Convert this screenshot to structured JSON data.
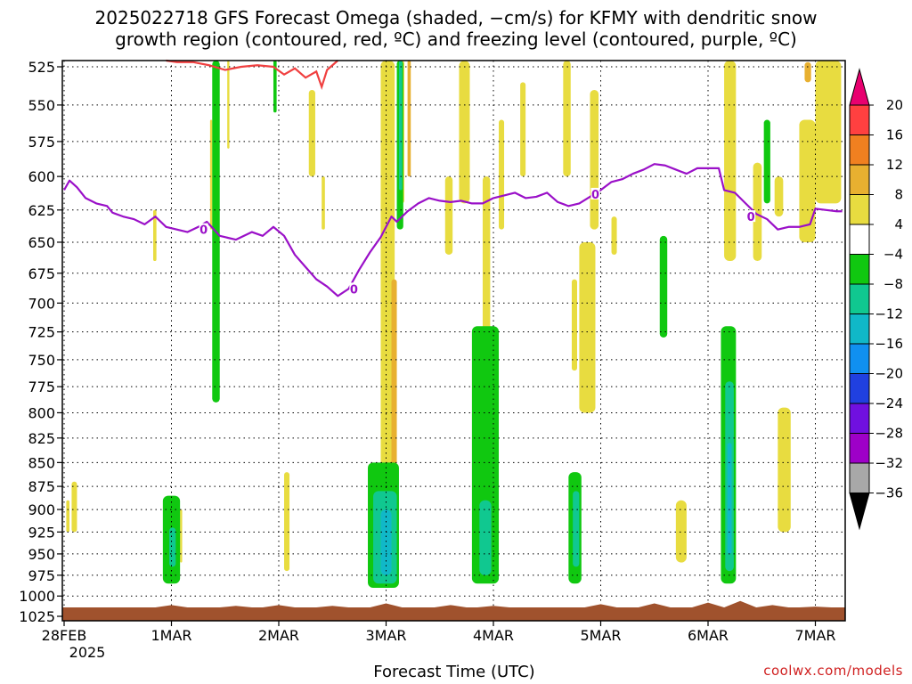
{
  "title_line1": "2025022718 GFS Forecast Omega (shaded, −cm/s) for KFMY with dendritic snow",
  "title_line2": "growth region (contoured, red, ºC) and freezing level (contoured, purple, ºC)",
  "credit": "coolwx.com/models",
  "chart_data": {
    "type": "heatmap",
    "xlabel": "Forecast Time (UTC)",
    "x_ticks": [
      {
        "label": "28FEB",
        "sub": "2025",
        "day": 0
      },
      {
        "label": "1MAR",
        "day": 1
      },
      {
        "label": "2MAR",
        "day": 2
      },
      {
        "label": "3MAR",
        "day": 3
      },
      {
        "label": "4MAR",
        "day": 4
      },
      {
        "label": "5MAR",
        "day": 5
      },
      {
        "label": "6MAR",
        "day": 6
      },
      {
        "label": "7MAR",
        "day": 7
      }
    ],
    "x_range_days": [
      -0.02,
      7.25
    ],
    "y_ticks": [
      525,
      550,
      575,
      600,
      625,
      650,
      675,
      700,
      725,
      750,
      775,
      800,
      825,
      850,
      875,
      900,
      925,
      950,
      975,
      1000,
      1025
    ],
    "y_scale": "log-pressure",
    "y_range_hpa": [
      520,
      1028
    ],
    "grid": true,
    "colorbar": {
      "labels": [
        "20",
        "16",
        "12",
        "8",
        "4",
        "−4",
        "−8",
        "−12",
        "−16",
        "−20",
        "−24",
        "−28",
        "−32",
        "−36"
      ],
      "colors": [
        "#e8006f",
        "#ff4040",
        "#f08020",
        "#e8b030",
        "#e8dc40",
        "#ffffff",
        "#10c810",
        "#10c890",
        "#10b8c8",
        "#1090f0",
        "#2040e0",
        "#7010e0",
        "#9e00c8",
        "#a8a8a8",
        "#000000"
      ]
    },
    "freezing_level": {
      "color": "#9a10c8",
      "label": "0",
      "points": [
        [
          0.0,
          610
        ],
        [
          0.05,
          603
        ],
        [
          0.12,
          608
        ],
        [
          0.2,
          616
        ],
        [
          0.3,
          620
        ],
        [
          0.4,
          622
        ],
        [
          0.45,
          627
        ],
        [
          0.55,
          630
        ],
        [
          0.65,
          632
        ],
        [
          0.75,
          636
        ],
        [
          0.85,
          630
        ],
        [
          0.95,
          638
        ],
        [
          1.05,
          640
        ],
        [
          1.15,
          642
        ],
        [
          1.25,
          638
        ],
        [
          1.33,
          634
        ],
        [
          1.45,
          645
        ],
        [
          1.6,
          648
        ],
        [
          1.75,
          642
        ],
        [
          1.85,
          645
        ],
        [
          1.95,
          638
        ],
        [
          2.05,
          645
        ],
        [
          2.15,
          660
        ],
        [
          2.25,
          670
        ],
        [
          2.35,
          680
        ],
        [
          2.45,
          686
        ],
        [
          2.55,
          694
        ],
        [
          2.65,
          688
        ],
        [
          2.75,
          672
        ],
        [
          2.85,
          658
        ],
        [
          2.95,
          646
        ],
        [
          3.05,
          630
        ],
        [
          3.1,
          634
        ],
        [
          3.2,
          626
        ],
        [
          3.3,
          620
        ],
        [
          3.4,
          616
        ],
        [
          3.5,
          618
        ],
        [
          3.6,
          619
        ],
        [
          3.7,
          618
        ],
        [
          3.8,
          620
        ],
        [
          3.9,
          620
        ],
        [
          4.0,
          616
        ],
        [
          4.1,
          614
        ],
        [
          4.2,
          612
        ],
        [
          4.3,
          616
        ],
        [
          4.4,
          615
        ],
        [
          4.5,
          612
        ],
        [
          4.6,
          619
        ],
        [
          4.7,
          622
        ],
        [
          4.8,
          620
        ],
        [
          4.9,
          615
        ],
        [
          5.0,
          610
        ],
        [
          5.1,
          604
        ],
        [
          5.2,
          602
        ],
        [
          5.3,
          598
        ],
        [
          5.4,
          595
        ],
        [
          5.5,
          591
        ],
        [
          5.6,
          592
        ],
        [
          5.7,
          595
        ],
        [
          5.8,
          598
        ],
        [
          5.9,
          594
        ],
        [
          6.0,
          594
        ],
        [
          6.1,
          594
        ],
        [
          6.15,
          610
        ],
        [
          6.25,
          612
        ],
        [
          6.35,
          620
        ],
        [
          6.45,
          628
        ],
        [
          6.55,
          632
        ],
        [
          6.65,
          640
        ],
        [
          6.75,
          638
        ],
        [
          6.85,
          638
        ],
        [
          6.95,
          636
        ],
        [
          7.0,
          624
        ],
        [
          7.1,
          625
        ],
        [
          7.2,
          626
        ],
        [
          7.25,
          626
        ]
      ]
    },
    "dendritic_zone": {
      "color": "#f04040",
      "points": [
        [
          0.95,
          521
        ],
        [
          1.05,
          522
        ],
        [
          1.2,
          522
        ],
        [
          1.35,
          524
        ],
        [
          1.5,
          527
        ],
        [
          1.65,
          525
        ],
        [
          1.8,
          524
        ],
        [
          1.95,
          525
        ],
        [
          2.05,
          530
        ],
        [
          2.15,
          526
        ],
        [
          2.25,
          532
        ],
        [
          2.35,
          528
        ],
        [
          2.4,
          538
        ],
        [
          2.45,
          527
        ],
        [
          2.55,
          521
        ]
      ]
    },
    "terrain": {
      "color": "#a0522d",
      "top_hpa": 1014,
      "bumps": [
        [
          1.0,
          1011
        ],
        [
          1.6,
          1012
        ],
        [
          2.0,
          1011
        ],
        [
          2.5,
          1012
        ],
        [
          3.0,
          1009
        ],
        [
          3.6,
          1011
        ],
        [
          4.0,
          1012
        ],
        [
          5.0,
          1010
        ],
        [
          5.5,
          1009
        ],
        [
          6.0,
          1008
        ],
        [
          6.3,
          1006
        ],
        [
          6.6,
          1011
        ],
        [
          7.0,
          1013
        ]
      ]
    },
    "omega_regions": [
      {
        "name": "yellow-1",
        "color": "#e8dc40",
        "x0": 0.02,
        "x1": 0.05,
        "p0": 890,
        "p1": 925
      },
      {
        "name": "yellow-2",
        "color": "#e8dc40",
        "x0": 0.07,
        "x1": 0.12,
        "p0": 870,
        "p1": 925
      },
      {
        "name": "yellow-3",
        "color": "#e8dc40",
        "x0": 0.83,
        "x1": 0.86,
        "p0": 625,
        "p1": 665
      },
      {
        "name": "yellow-4",
        "color": "#e8dc40",
        "x0": 1.08,
        "x1": 1.1,
        "p0": 900,
        "p1": 960
      },
      {
        "name": "yellow-5",
        "color": "#e8dc40",
        "x0": 1.36,
        "x1": 1.38,
        "p0": 560,
        "p1": 640
      },
      {
        "name": "yellow-6",
        "color": "#e8dc40",
        "x0": 1.52,
        "x1": 1.54,
        "p0": 520,
        "p1": 580
      },
      {
        "name": "yellow-7",
        "color": "#e8dc40",
        "x0": 2.05,
        "x1": 2.1,
        "p0": 860,
        "p1": 970
      },
      {
        "name": "yellow-8",
        "color": "#e8dc40",
        "x0": 2.28,
        "x1": 2.34,
        "p0": 540,
        "p1": 600
      },
      {
        "name": "yellow-9",
        "color": "#e8dc40",
        "x0": 2.4,
        "x1": 2.43,
        "p0": 600,
        "p1": 640
      },
      {
        "name": "yellow-10",
        "color": "#e8dc40",
        "x0": 2.95,
        "x1": 3.08,
        "p0": 520,
        "p1": 900
      },
      {
        "name": "yellow-11",
        "color": "#e8dc40",
        "x0": 3.12,
        "x1": 3.17,
        "p0": 520,
        "p1": 620
      },
      {
        "name": "yellow-12",
        "color": "#e8dc40",
        "x0": 3.55,
        "x1": 3.62,
        "p0": 600,
        "p1": 660
      },
      {
        "name": "yellow-13",
        "color": "#e8dc40",
        "x0": 3.68,
        "x1": 3.78,
        "p0": 520,
        "p1": 620
      },
      {
        "name": "yellow-14",
        "color": "#e8dc40",
        "x0": 3.9,
        "x1": 3.97,
        "p0": 600,
        "p1": 830
      },
      {
        "name": "yellow-15",
        "color": "#e8dc40",
        "x0": 4.05,
        "x1": 4.1,
        "p0": 560,
        "p1": 640
      },
      {
        "name": "yellow-16",
        "color": "#e8dc40",
        "x0": 4.25,
        "x1": 4.3,
        "p0": 535,
        "p1": 600
      },
      {
        "name": "yellow-17",
        "color": "#e8dc40",
        "x0": 4.65,
        "x1": 4.72,
        "p0": 520,
        "p1": 600
      },
      {
        "name": "yellow-18",
        "color": "#e8dc40",
        "x0": 4.73,
        "x1": 4.78,
        "p0": 680,
        "p1": 760
      },
      {
        "name": "yellow-19",
        "color": "#e8dc40",
        "x0": 4.8,
        "x1": 4.95,
        "p0": 650,
        "p1": 800
      },
      {
        "name": "yellow-20",
        "color": "#e8dc40",
        "x0": 4.9,
        "x1": 4.98,
        "p0": 540,
        "p1": 640
      },
      {
        "name": "yellow-21",
        "color": "#e8dc40",
        "x0": 5.1,
        "x1": 5.15,
        "p0": 630,
        "p1": 660
      },
      {
        "name": "yellow-22",
        "color": "#e8dc40",
        "x0": 5.7,
        "x1": 5.8,
        "p0": 890,
        "p1": 960
      },
      {
        "name": "yellow-23",
        "color": "#e8dc40",
        "x0": 6.15,
        "x1": 6.26,
        "p0": 520,
        "p1": 665
      },
      {
        "name": "yellow-24",
        "color": "#e8dc40",
        "x0": 6.42,
        "x1": 6.5,
        "p0": 590,
        "p1": 665
      },
      {
        "name": "yellow-25",
        "color": "#e8dc40",
        "x0": 6.62,
        "x1": 6.7,
        "p0": 600,
        "p1": 630
      },
      {
        "name": "yellow-26",
        "color": "#e8dc40",
        "x0": 6.65,
        "x1": 6.77,
        "p0": 795,
        "p1": 925
      },
      {
        "name": "yellow-27",
        "color": "#e8dc40",
        "x0": 6.85,
        "x1": 7.0,
        "p0": 560,
        "p1": 650
      },
      {
        "name": "yellow-28",
        "color": "#e8dc40",
        "x0": 7.0,
        "x1": 7.24,
        "p0": 520,
        "p1": 620
      },
      {
        "name": "orange-1",
        "color": "#e8b030",
        "x0": 3.05,
        "x1": 3.1,
        "p0": 680,
        "p1": 870
      },
      {
        "name": "orange-2",
        "color": "#e8b030",
        "x0": 3.2,
        "x1": 3.23,
        "p0": 520,
        "p1": 600
      },
      {
        "name": "orange-3",
        "color": "#e8b030",
        "x0": 6.9,
        "x1": 6.96,
        "p0": 522,
        "p1": 535
      },
      {
        "name": "green-1",
        "color": "#10c810",
        "x0": 1.38,
        "x1": 1.45,
        "p0": 520,
        "p1": 790
      },
      {
        "name": "green-2",
        "color": "#10c810",
        "x0": 0.92,
        "x1": 1.08,
        "p0": 885,
        "p1": 985
      },
      {
        "name": "green-3",
        "color": "#10c810",
        "x0": 1.95,
        "x1": 1.98,
        "p0": 520,
        "p1": 555
      },
      {
        "name": "green-4",
        "color": "#10c810",
        "x0": 2.83,
        "x1": 3.12,
        "p0": 850,
        "p1": 990
      },
      {
        "name": "green-5",
        "color": "#10c810",
        "x0": 3.8,
        "x1": 4.05,
        "p0": 720,
        "p1": 985
      },
      {
        "name": "green-6",
        "color": "#10c810",
        "x0": 4.7,
        "x1": 4.82,
        "p0": 860,
        "p1": 985
      },
      {
        "name": "green-7",
        "color": "#10c810",
        "x0": 5.55,
        "x1": 5.62,
        "p0": 645,
        "p1": 730
      },
      {
        "name": "green-8",
        "color": "#10c810",
        "x0": 6.12,
        "x1": 6.26,
        "p0": 720,
        "p1": 985
      },
      {
        "name": "green-9",
        "color": "#10c810",
        "x0": 6.52,
        "x1": 6.58,
        "p0": 560,
        "p1": 620
      },
      {
        "name": "green-10",
        "color": "#10c810",
        "x0": 3.1,
        "x1": 3.16,
        "p0": 520,
        "p1": 640
      },
      {
        "name": "teal-1",
        "color": "#10c890",
        "x0": 0.98,
        "x1": 1.04,
        "p0": 920,
        "p1": 965
      },
      {
        "name": "teal-2",
        "color": "#10c890",
        "x0": 2.88,
        "x1": 3.1,
        "p0": 880,
        "p1": 985
      },
      {
        "name": "teal-3",
        "color": "#10c890",
        "x0": 3.87,
        "x1": 3.98,
        "p0": 890,
        "p1": 975
      },
      {
        "name": "teal-4",
        "color": "#10c890",
        "x0": 4.74,
        "x1": 4.8,
        "p0": 880,
        "p1": 965
      },
      {
        "name": "teal-5",
        "color": "#10c890",
        "x0": 6.16,
        "x1": 6.24,
        "p0": 770,
        "p1": 970
      },
      {
        "name": "teal-6",
        "color": "#10c890",
        "x0": 3.12,
        "x1": 3.15,
        "p0": 520,
        "p1": 610
      },
      {
        "name": "cyan-1",
        "color": "#10b8c8",
        "x0": 2.95,
        "x1": 3.05,
        "p0": 900,
        "p1": 975
      },
      {
        "name": "cyan-2",
        "color": "#10b8c8",
        "x0": 6.18,
        "x1": 6.22,
        "p0": 830,
        "p1": 950
      }
    ]
  }
}
